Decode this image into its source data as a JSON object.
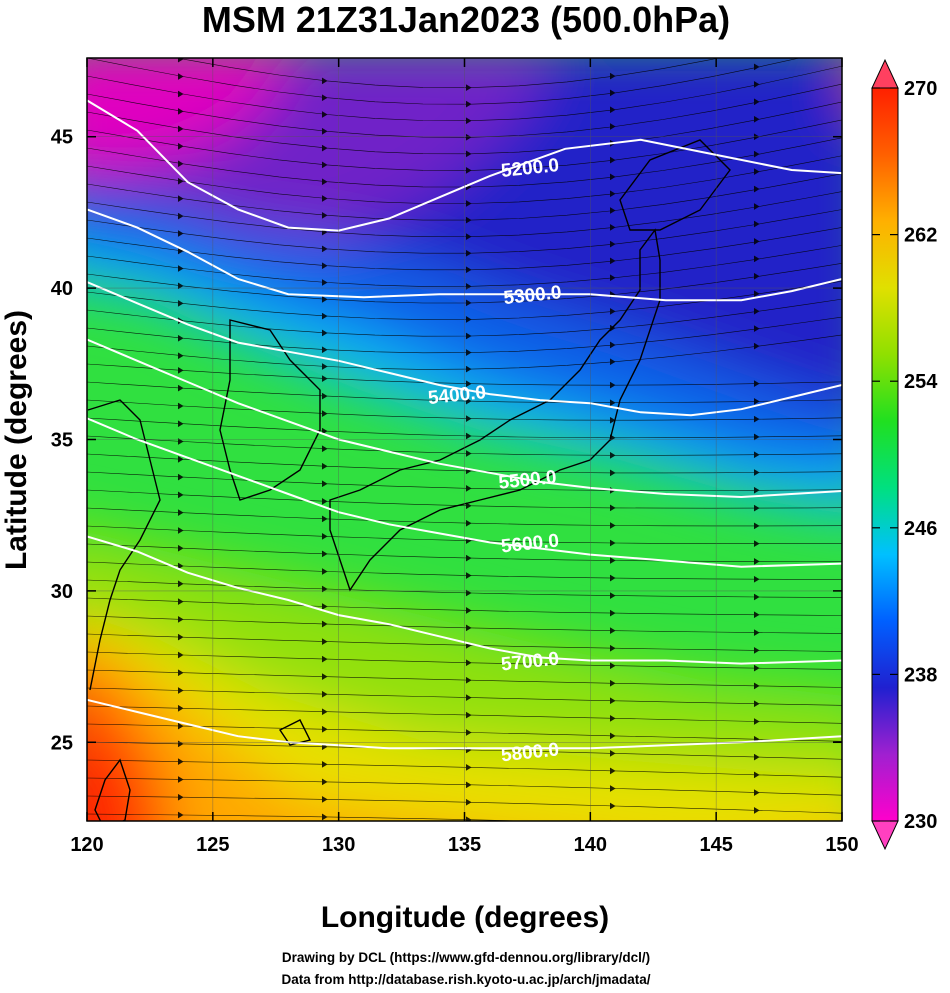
{
  "title": "MSM 21Z31Jan2023 (500.0hPa)",
  "chart_data": {
    "type": "heatmap",
    "title": "MSM 21Z31Jan2023 (500.0hPa)",
    "xlabel": "Longitude (degrees)",
    "ylabel": "Latitude  (degrees)",
    "xlim": [
      120,
      150
    ],
    "ylim": [
      22.4,
      47.6
    ],
    "x_ticks": [
      120,
      125,
      130,
      135,
      140,
      145,
      150
    ],
    "y_ticks": [
      25,
      30,
      35,
      40,
      45
    ],
    "x_tick_labels": [
      "120",
      "125",
      "130",
      "135",
      "140",
      "145",
      "150"
    ],
    "y_tick_labels": [
      "25",
      "30",
      "35",
      "40",
      "45"
    ],
    "colorbar": {
      "min": 230,
      "max": 270,
      "ticks": [
        230,
        238,
        246,
        254,
        262,
        270
      ],
      "tick_labels": [
        "230",
        "238",
        "246",
        "254",
        "262",
        "270"
      ],
      "colors": [
        "#ff00cc",
        "#a020d0",
        "#2020d0",
        "#0060ff",
        "#00c0ff",
        "#00e080",
        "#20e020",
        "#90e000",
        "#e0e000",
        "#ffb000",
        "#ff6000",
        "#ff2000"
      ]
    },
    "contours": [
      {
        "label": "5200.0",
        "level": 5200,
        "label_pos": [
          137.6,
          44.0
        ]
      },
      {
        "label": "5300.0",
        "level": 5300,
        "label_pos": [
          137.7,
          39.8
        ]
      },
      {
        "label": "5400.0",
        "level": 5400,
        "label_pos": [
          134.7,
          36.5
        ]
      },
      {
        "label": "5500.0",
        "level": 5500,
        "label_pos": [
          137.5,
          33.7
        ]
      },
      {
        "label": "5600.0",
        "level": 5600,
        "label_pos": [
          137.6,
          31.6
        ]
      },
      {
        "label": "5700.0",
        "level": 5700,
        "label_pos": [
          137.6,
          27.7
        ]
      },
      {
        "label": "5800.0",
        "level": 5800,
        "label_pos": [
          137.6,
          24.7
        ]
      }
    ],
    "grid": true,
    "legend": "right"
  },
  "credits": {
    "line1": "Drawing by DCL (https://www.gfd-dennou.org/library/dcl/)",
    "line2": "Data from http://database.rish.kyoto-u.ac.jp/arch/jmadata/"
  }
}
